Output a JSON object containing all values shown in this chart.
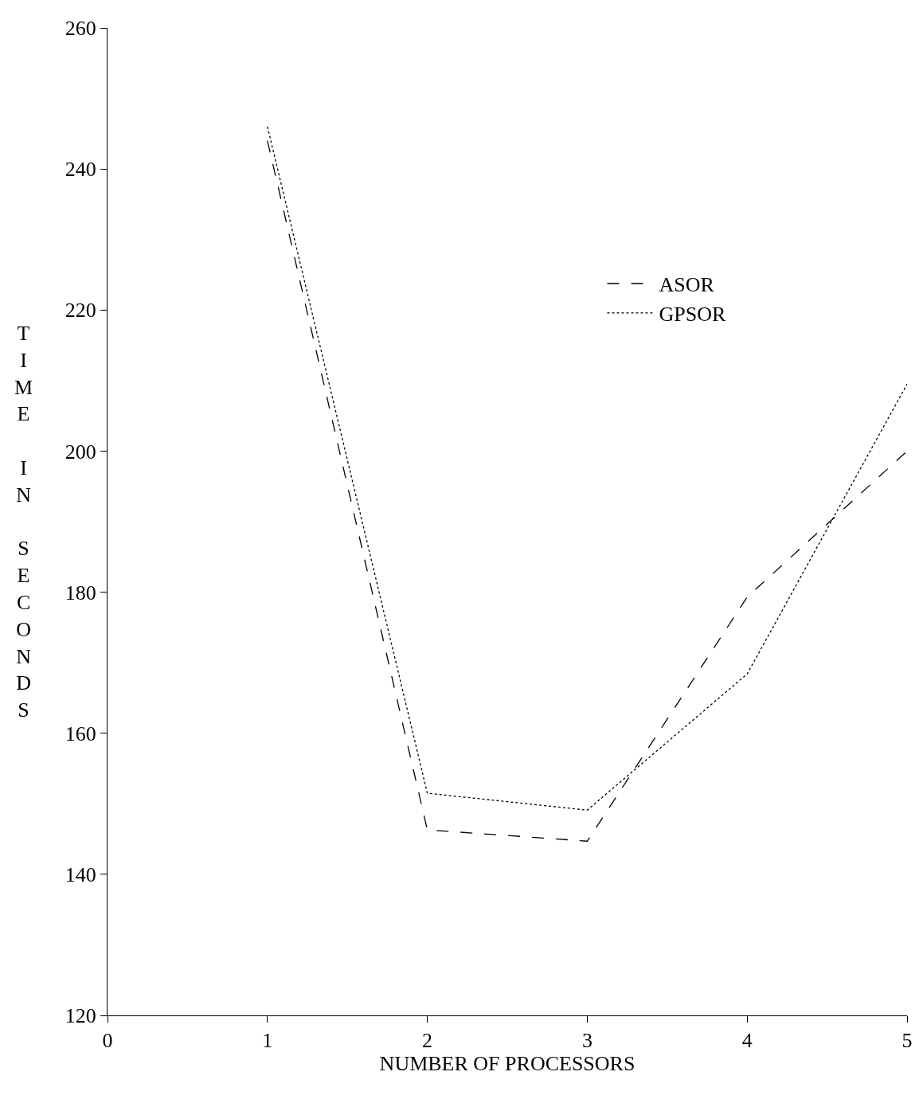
{
  "chart_data": {
    "type": "line",
    "xlabel": "NUMBER OF PROCESSORS",
    "ylabel": "TIME IN SECONDS",
    "x": [
      1,
      2,
      3,
      4,
      5
    ],
    "series": [
      {
        "name": "ASOR",
        "color": "#000000",
        "line_style": "dashed",
        "values": [
          244,
          146.3,
          144.7,
          179.3,
          200
        ]
      },
      {
        "name": "GPSOR",
        "color": "#000000",
        "line_style": "dotted",
        "values": [
          246,
          151.5,
          149.1,
          168.4,
          209.5
        ]
      }
    ],
    "xlim": [
      0,
      5
    ],
    "xticks": [
      0,
      1,
      2,
      3,
      4,
      5
    ],
    "ylim": [
      120,
      260
    ],
    "yticks": [
      120,
      140,
      160,
      180,
      200,
      220,
      240,
      260
    ],
    "legend": "top right",
    "marker": "none"
  }
}
